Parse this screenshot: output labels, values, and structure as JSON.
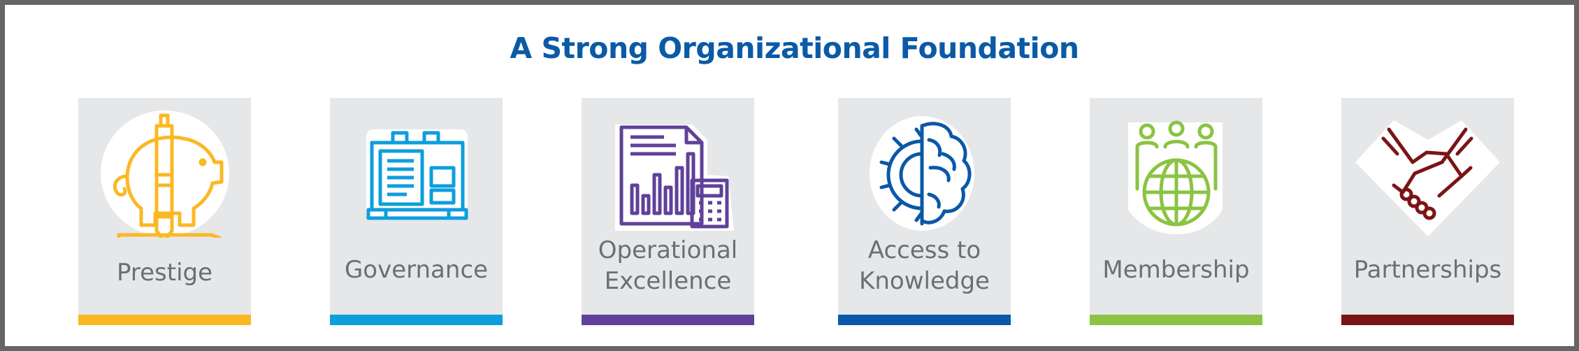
{
  "title": "A Strong Organizational Foundation",
  "colors": {
    "title": "#0a5aa6",
    "card_bg": "#e6e7e8",
    "label": "#6d6e71",
    "frame": "#666666"
  },
  "cards": [
    {
      "label_lines": [
        "Prestige"
      ],
      "color": "#fbb823",
      "icon": "piggy-bank-icon"
    },
    {
      "label_lines": [
        "Governance"
      ],
      "color": "#0d9ede",
      "icon": "briefcase-document-icon"
    },
    {
      "label_lines": [
        "Operational",
        "Excellence"
      ],
      "color": "#5f4199",
      "icon": "report-calculator-icon"
    },
    {
      "label_lines": [
        "Access to",
        "Knowledge"
      ],
      "color": "#0a58a8",
      "icon": "gear-brain-icon"
    },
    {
      "label_lines": [
        "Membership"
      ],
      "color": "#8bc343",
      "icon": "people-globe-icon"
    },
    {
      "label_lines": [
        "Partnerships"
      ],
      "color": "#7b1416",
      "icon": "handshake-icon"
    }
  ]
}
